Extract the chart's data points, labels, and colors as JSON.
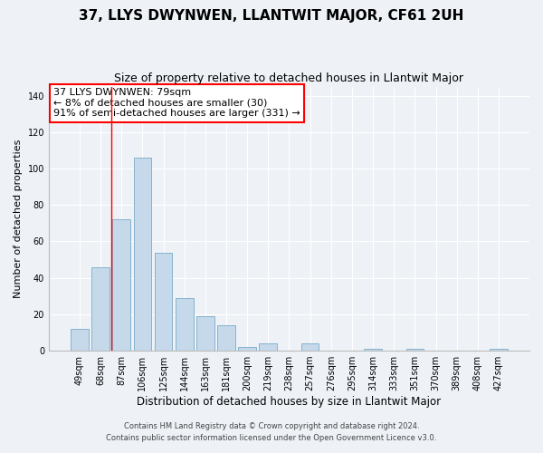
{
  "title": "37, LLYS DWYNWEN, LLANTWIT MAJOR, CF61 2UH",
  "subtitle": "Size of property relative to detached houses in Llantwit Major",
  "xlabel": "Distribution of detached houses by size in Llantwit Major",
  "ylabel": "Number of detached properties",
  "bar_labels": [
    "49sqm",
    "68sqm",
    "87sqm",
    "106sqm",
    "125sqm",
    "144sqm",
    "163sqm",
    "181sqm",
    "200sqm",
    "219sqm",
    "238sqm",
    "257sqm",
    "276sqm",
    "295sqm",
    "314sqm",
    "333sqm",
    "351sqm",
    "370sqm",
    "389sqm",
    "408sqm",
    "427sqm"
  ],
  "bar_values": [
    12,
    46,
    72,
    106,
    54,
    29,
    19,
    14,
    2,
    4,
    0,
    4,
    0,
    0,
    1,
    0,
    1,
    0,
    0,
    0,
    1
  ],
  "bar_color": "#c5d9ea",
  "bar_edge_color": "#7aaac8",
  "ylim": [
    0,
    145
  ],
  "yticks": [
    0,
    20,
    40,
    60,
    80,
    100,
    120,
    140
  ],
  "red_line_index": 1.5,
  "annotation_line1": "37 LLYS DWYNWEN: 79sqm",
  "annotation_line2": "← 8% of detached houses are smaller (30)",
  "annotation_line3": "91% of semi-detached houses are larger (331) →",
  "footer_line1": "Contains HM Land Registry data © Crown copyright and database right 2024.",
  "footer_line2": "Contains public sector information licensed under the Open Government Licence v3.0.",
  "background_color": "#eef2f7",
  "plot_bg_color": "#eef2f7",
  "grid_color": "#ffffff",
  "title_fontsize": 11,
  "subtitle_fontsize": 9,
  "ylabel_fontsize": 8,
  "xlabel_fontsize": 8.5,
  "tick_fontsize": 7,
  "footer_fontsize": 6,
  "annotation_fontsize": 8
}
